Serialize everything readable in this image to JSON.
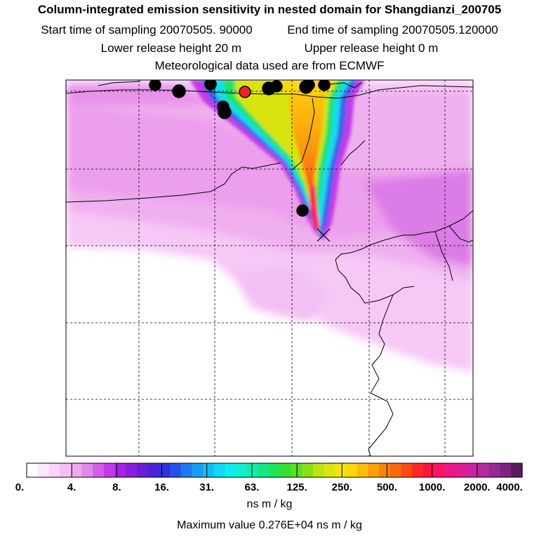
{
  "header": {
    "title": "Column-integrated emission sensitivity in nested domain for Shangdianzi_200705",
    "start_label": "Start time of sampling",
    "start_value": "20070505. 90000",
    "end_label": "End time of sampling",
    "end_value": "20070505.120000",
    "lower_label": "Lower release height",
    "lower_value": "20 m",
    "upper_label": "Upper release height",
    "upper_value": "0 m",
    "met_text": "Meteorological data used are from ECMWF"
  },
  "colorbar": {
    "colors": [
      "#ffffff",
      "#fce8fc",
      "#f9d5f9",
      "#f4c0f4",
      "#eea8ee",
      "#e487ea",
      "#d55ee6",
      "#c23ae8",
      "#a522e6",
      "#8a1ee0",
      "#6a1ed6",
      "#4a22d8",
      "#3030e0",
      "#2850ec",
      "#1e78f4",
      "#189cf6",
      "#16bcf6",
      "#12d8f4",
      "#10ecec",
      "#10f0d0",
      "#10ecaa",
      "#14e884",
      "#1ee45c",
      "#34e030",
      "#5ae01e",
      "#8ae016",
      "#b8e412",
      "#dce410",
      "#f2e40e",
      "#fcd80c",
      "#fcbc0a",
      "#fca008",
      "#fc8406",
      "#fc6a08",
      "#fc4c10",
      "#fc2a24",
      "#fc1440",
      "#fc1464",
      "#f01484",
      "#e01c94",
      "#cc24a0",
      "#b428a0",
      "#9a2894",
      "#7c2480",
      "#5a1c5c"
    ],
    "tick_labels": [
      "0.",
      "4.",
      "8.",
      "16.",
      "31.",
      "63.",
      "125.",
      "250.",
      "500.",
      "1000.",
      "2000.",
      "4000."
    ],
    "units": "ns m / kg"
  },
  "footer": {
    "max_text": "Maximum value  0.276E+04 ns m / kg"
  },
  "map": {
    "receptor_marker": "x",
    "point_fill": "#000000",
    "highlight_point_fill": "#ee2222"
  }
}
